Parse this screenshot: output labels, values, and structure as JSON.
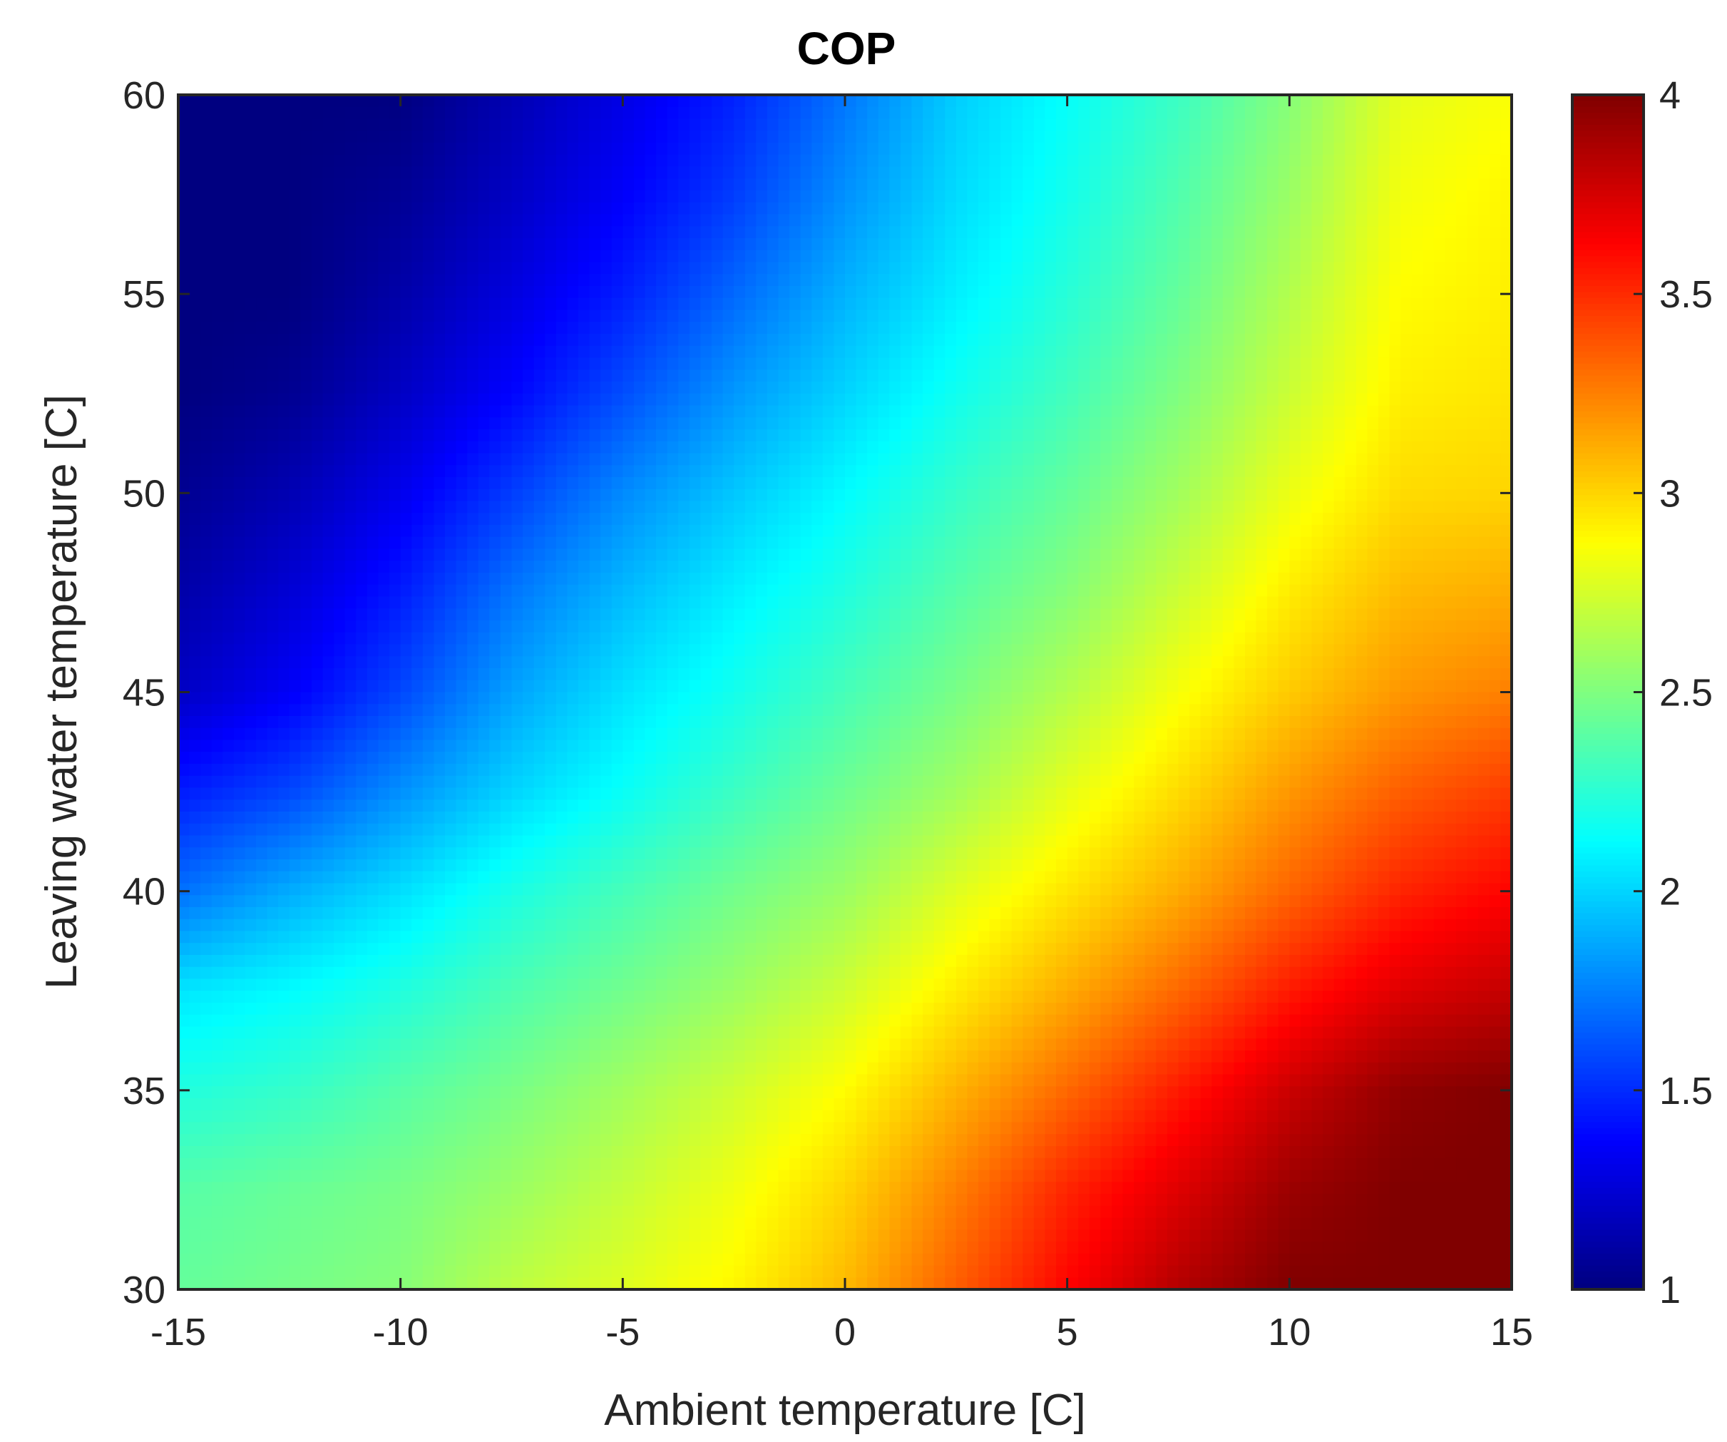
{
  "chart_data": {
    "type": "heatmap",
    "title": "COP",
    "xlabel": "Ambient temperature [C]",
    "ylabel": "Leaving water temperature [C]",
    "xlim": [
      -15,
      15
    ],
    "ylim": [
      30,
      60
    ],
    "xticks": [
      -15,
      -10,
      -5,
      0,
      5,
      10,
      15
    ],
    "yticks": [
      30,
      35,
      40,
      45,
      50,
      55,
      60
    ],
    "colorbar": {
      "colormap": "jet",
      "limits": [
        1,
        4
      ],
      "ticks": [
        1,
        1.5,
        2,
        2.5,
        3,
        3.5,
        4
      ]
    },
    "grid": false,
    "x": [
      -15,
      -12.5,
      -10,
      -7.5,
      -5,
      -2.5,
      0,
      2.5,
      5,
      7.5,
      10,
      12.5,
      15
    ],
    "y": [
      30,
      32.5,
      35,
      37.5,
      40,
      42.5,
      45,
      47.5,
      50,
      52.5,
      55,
      57.5,
      60
    ],
    "z": [
      [
        2.42,
        2.47,
        2.52,
        2.68,
        2.78,
        2.9,
        3.08,
        3.35,
        3.62,
        3.85,
        4.0,
        4.0,
        4.0
      ],
      [
        2.38,
        2.43,
        2.48,
        2.58,
        2.7,
        2.83,
        3.0,
        3.25,
        3.52,
        3.72,
        3.92,
        4.0,
        4.0
      ],
      [
        2.22,
        2.28,
        2.38,
        2.48,
        2.6,
        2.73,
        2.88,
        3.1,
        3.32,
        3.55,
        3.78,
        3.95,
        4.0
      ],
      [
        2.05,
        2.12,
        2.22,
        2.35,
        2.46,
        2.58,
        2.73,
        2.93,
        3.12,
        3.32,
        3.55,
        3.72,
        3.8
      ],
      [
        1.7,
        1.88,
        2.03,
        2.2,
        2.33,
        2.46,
        2.58,
        2.78,
        2.95,
        3.12,
        3.33,
        3.52,
        3.62
      ],
      [
        1.45,
        1.58,
        1.8,
        2.0,
        2.15,
        2.3,
        2.45,
        2.6,
        2.8,
        2.98,
        3.18,
        3.35,
        3.45
      ],
      [
        1.2,
        1.35,
        1.58,
        1.85,
        2.04,
        2.18,
        2.33,
        2.48,
        2.65,
        2.85,
        3.03,
        3.18,
        3.25
      ],
      [
        1.12,
        1.25,
        1.45,
        1.72,
        1.92,
        2.08,
        2.22,
        2.38,
        2.52,
        2.72,
        2.93,
        3.08,
        3.12
      ],
      [
        1.05,
        1.15,
        1.32,
        1.55,
        1.78,
        1.96,
        2.12,
        2.28,
        2.42,
        2.6,
        2.82,
        2.98,
        3.0
      ],
      [
        1.0,
        1.05,
        1.2,
        1.38,
        1.6,
        1.82,
        2.0,
        2.17,
        2.32,
        2.5,
        2.72,
        2.92,
        2.95
      ],
      [
        1.0,
        1.0,
        1.12,
        1.28,
        1.46,
        1.68,
        1.9,
        2.08,
        2.24,
        2.42,
        2.65,
        2.88,
        2.92
      ],
      [
        1.0,
        1.0,
        1.06,
        1.2,
        1.36,
        1.55,
        1.8,
        2.02,
        2.18,
        2.36,
        2.58,
        2.84,
        2.9
      ],
      [
        1.0,
        1.0,
        1.0,
        1.15,
        1.3,
        1.47,
        1.72,
        1.98,
        2.14,
        2.3,
        2.52,
        2.8,
        2.86
      ]
    ]
  }
}
